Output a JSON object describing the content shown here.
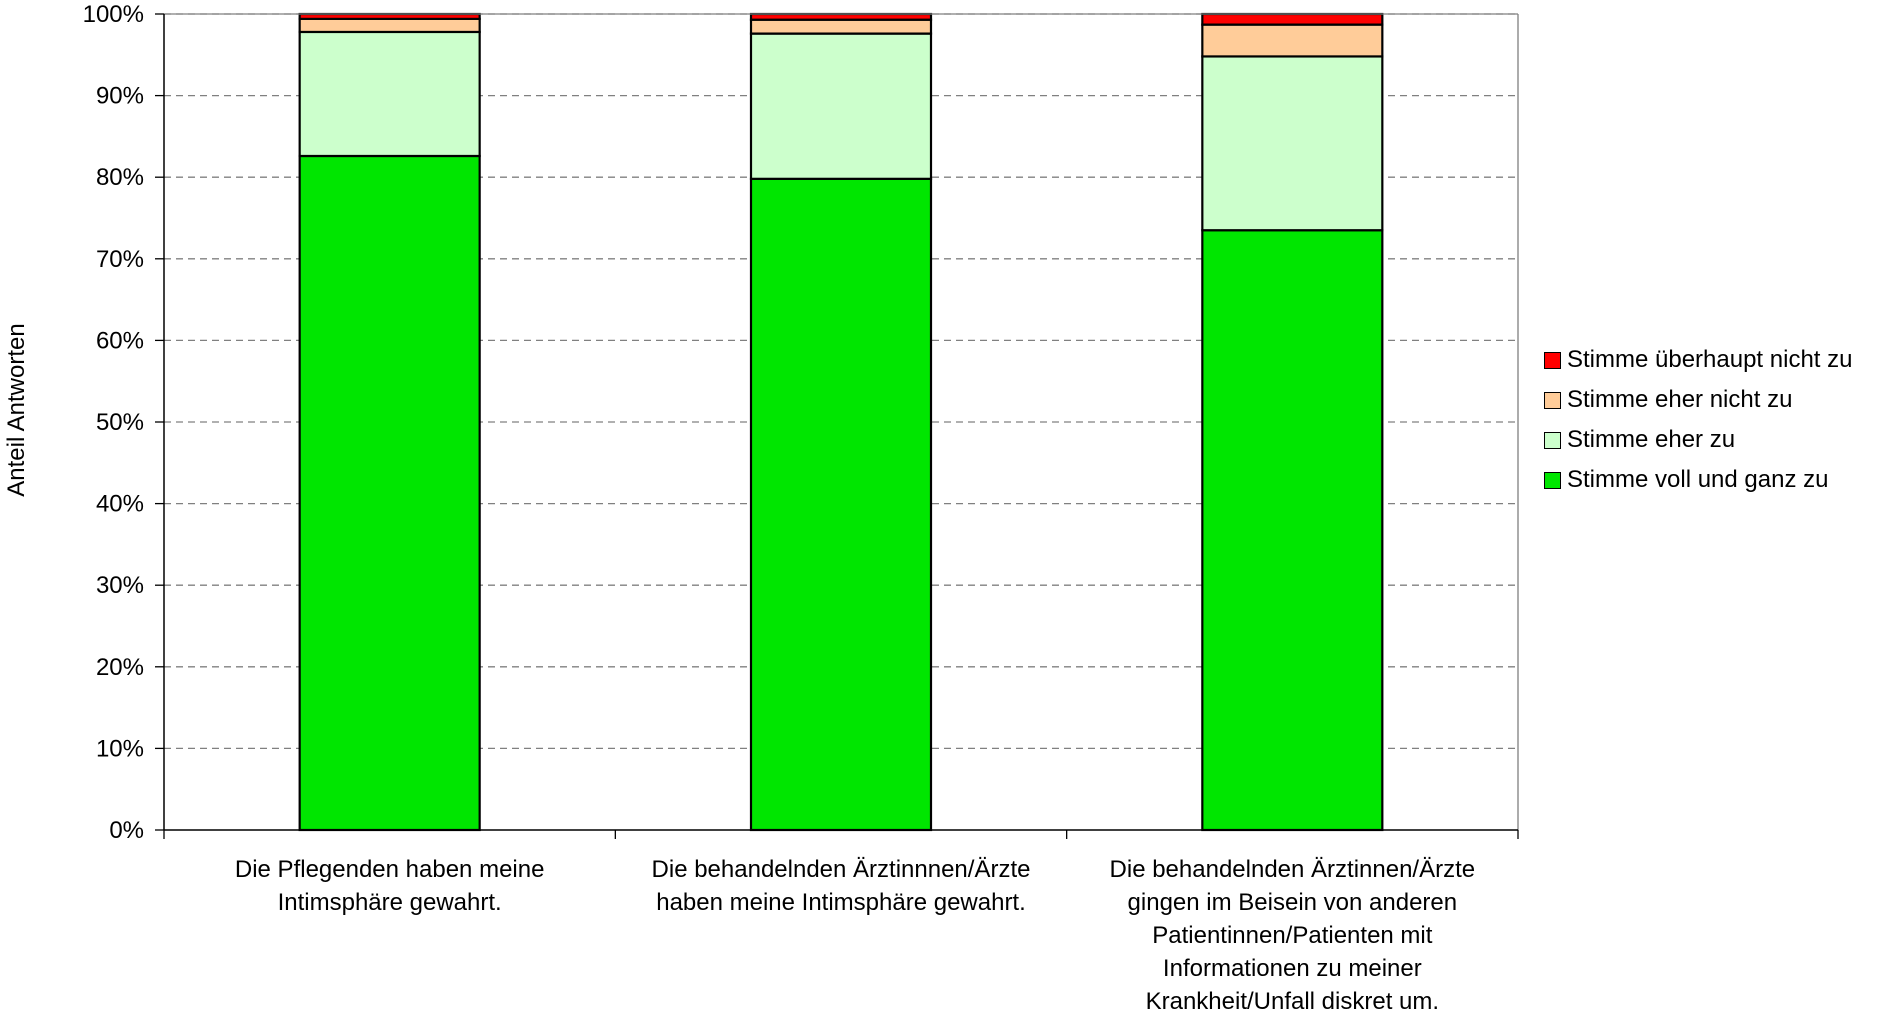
{
  "chart_data": {
    "type": "bar",
    "stacked": true,
    "ylabel": "Anteil Antworten",
    "yticks": [
      "0%",
      "10%",
      "20%",
      "30%",
      "40%",
      "50%",
      "60%",
      "70%",
      "80%",
      "90%",
      "100%"
    ],
    "ylim": [
      0,
      100
    ],
    "grid": true,
    "legend_position": "right",
    "categories": [
      "Die Pflegenden haben meine Intimsphäre gewahrt.",
      "Die behandelnden Ärztinnnen/Ärzte haben meine Intimsphäre gewahrt.",
      "Die behandelnden Ärztinnen/Ärzte gingen im Beisein von anderen Patientinnen/Patienten mit Informationen zu meiner Krankheit/Unfall diskret um."
    ],
    "series": [
      {
        "name": "Stimme voll und ganz zu",
        "color": "#00e600",
        "values": [
          82.6,
          79.8,
          73.5
        ]
      },
      {
        "name": "Stimme eher zu",
        "color": "#ccffcc",
        "values": [
          15.2,
          17.8,
          21.3
        ]
      },
      {
        "name": "Stimme eher nicht zu",
        "color": "#ffcc99",
        "values": [
          1.6,
          1.7,
          3.9
        ]
      },
      {
        "name": "Stimme überhaupt nicht zu",
        "color": "#ff0000",
        "values": [
          0.6,
          0.7,
          1.3
        ]
      }
    ],
    "legend_order": [
      "Stimme überhaupt nicht zu",
      "Stimme eher nicht zu",
      "Stimme eher zu",
      "Stimme voll und ganz zu"
    ]
  }
}
